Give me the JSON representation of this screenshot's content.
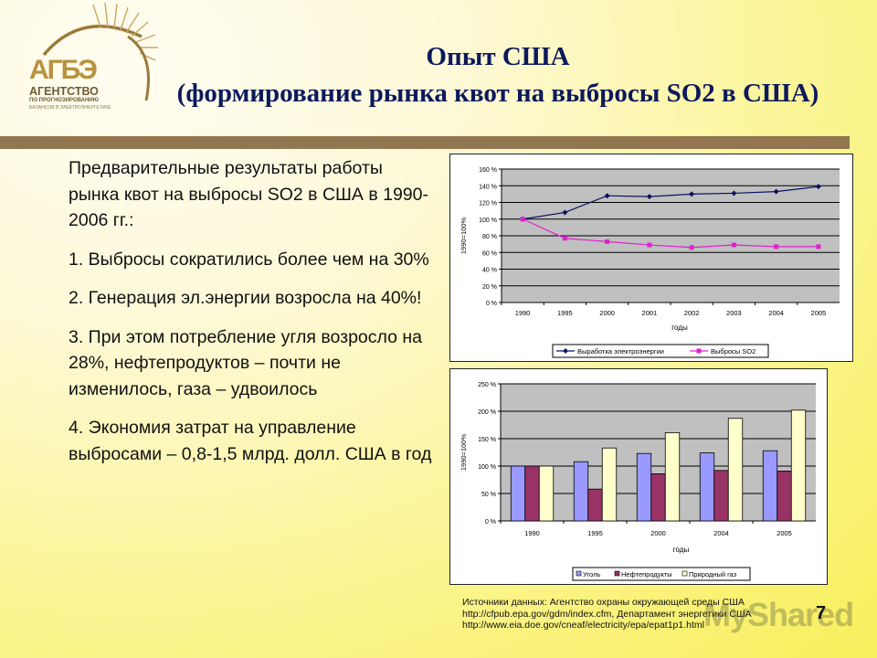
{
  "logo": {
    "abbr": "АГБЭ",
    "line1": "АГЕНТСТВО",
    "line2": "ПО ПРОГНОЗИРОВАНИЮ",
    "line3": "БАЛАНСОВ В ЭЛЕКТРОЭНЕРГЕТИКЕ"
  },
  "title": {
    "line1": "Опыт США",
    "line2": "(формирование рынка квот на выбросы SO2 в США)"
  },
  "body": {
    "intro": "Предварительные результаты работы рынка квот на выбросы SO2  в США в 1990-2006 гг.:",
    "points": [
      "1. Выбросы сократились более чем на 30%",
      "2. Генерация эл.энергии возросла на 40%!",
      "3. При этом потребление угля возросло на 28%, нефтепродуктов – почти не изменилось, газа – удвоилось",
      "4. Экономия затрат на управление выбросами – 0,8-1,5 млрд. долл. США в год"
    ]
  },
  "sources": {
    "line1": "Источники данных: Агентство охраны окружающей среды США",
    "line2": "http://cfpub.epa.gov/gdm/index.cfm, Департамент энергетики США",
    "line3": "http://www.eia.doe.gov/cneaf/electricity/epa/epat1p1.html"
  },
  "page_number": "7",
  "watermark": "MyShared",
  "colors": {
    "title": "#0c1a5c",
    "separator": "#927650",
    "plot_bg": "#c0c0c0",
    "electricity": "#0d1060",
    "so2": "#e020d0",
    "coal": "#9999ff",
    "oil": "#993366",
    "gas": "#ffffcc"
  },
  "chart_data": [
    {
      "type": "line",
      "title": "",
      "xlabel": "годы",
      "ylabel": "1990=100%",
      "categories": [
        "1990",
        "1995",
        "2000",
        "2001",
        "2002",
        "2003",
        "2004",
        "2005"
      ],
      "yticks": [
        "0 %",
        "20 %",
        "40 %",
        "60 %",
        "80 %",
        "100 %",
        "120 %",
        "140 %",
        "160 %"
      ],
      "ylim": [
        0,
        160
      ],
      "grid": true,
      "legend_position": "bottom",
      "series": [
        {
          "name": "Выработка электроэнергии",
          "marker": "diamond",
          "values": [
            100,
            108,
            128,
            127,
            130,
            131,
            133,
            139
          ]
        },
        {
          "name": "Выбросы SO2",
          "marker": "square",
          "values": [
            100,
            77,
            73,
            69,
            66,
            69,
            67,
            67
          ]
        }
      ]
    },
    {
      "type": "bar",
      "title": "",
      "xlabel": "годы",
      "ylabel": "1990=100%",
      "categories": [
        "1990",
        "1995",
        "2000",
        "2004",
        "2005"
      ],
      "yticks": [
        "0 %",
        "50 %",
        "100 %",
        "150 %",
        "200 %",
        "250 %"
      ],
      "ylim": [
        0,
        250
      ],
      "grid": true,
      "legend_position": "bottom",
      "series": [
        {
          "name": "Уголь",
          "values": [
            100,
            108,
            123,
            124,
            128
          ]
        },
        {
          "name": "Нефтепродукты",
          "values": [
            100,
            58,
            86,
            92,
            91
          ]
        },
        {
          "name": "Природный газ",
          "values": [
            100,
            133,
            161,
            187,
            202
          ]
        }
      ]
    }
  ]
}
